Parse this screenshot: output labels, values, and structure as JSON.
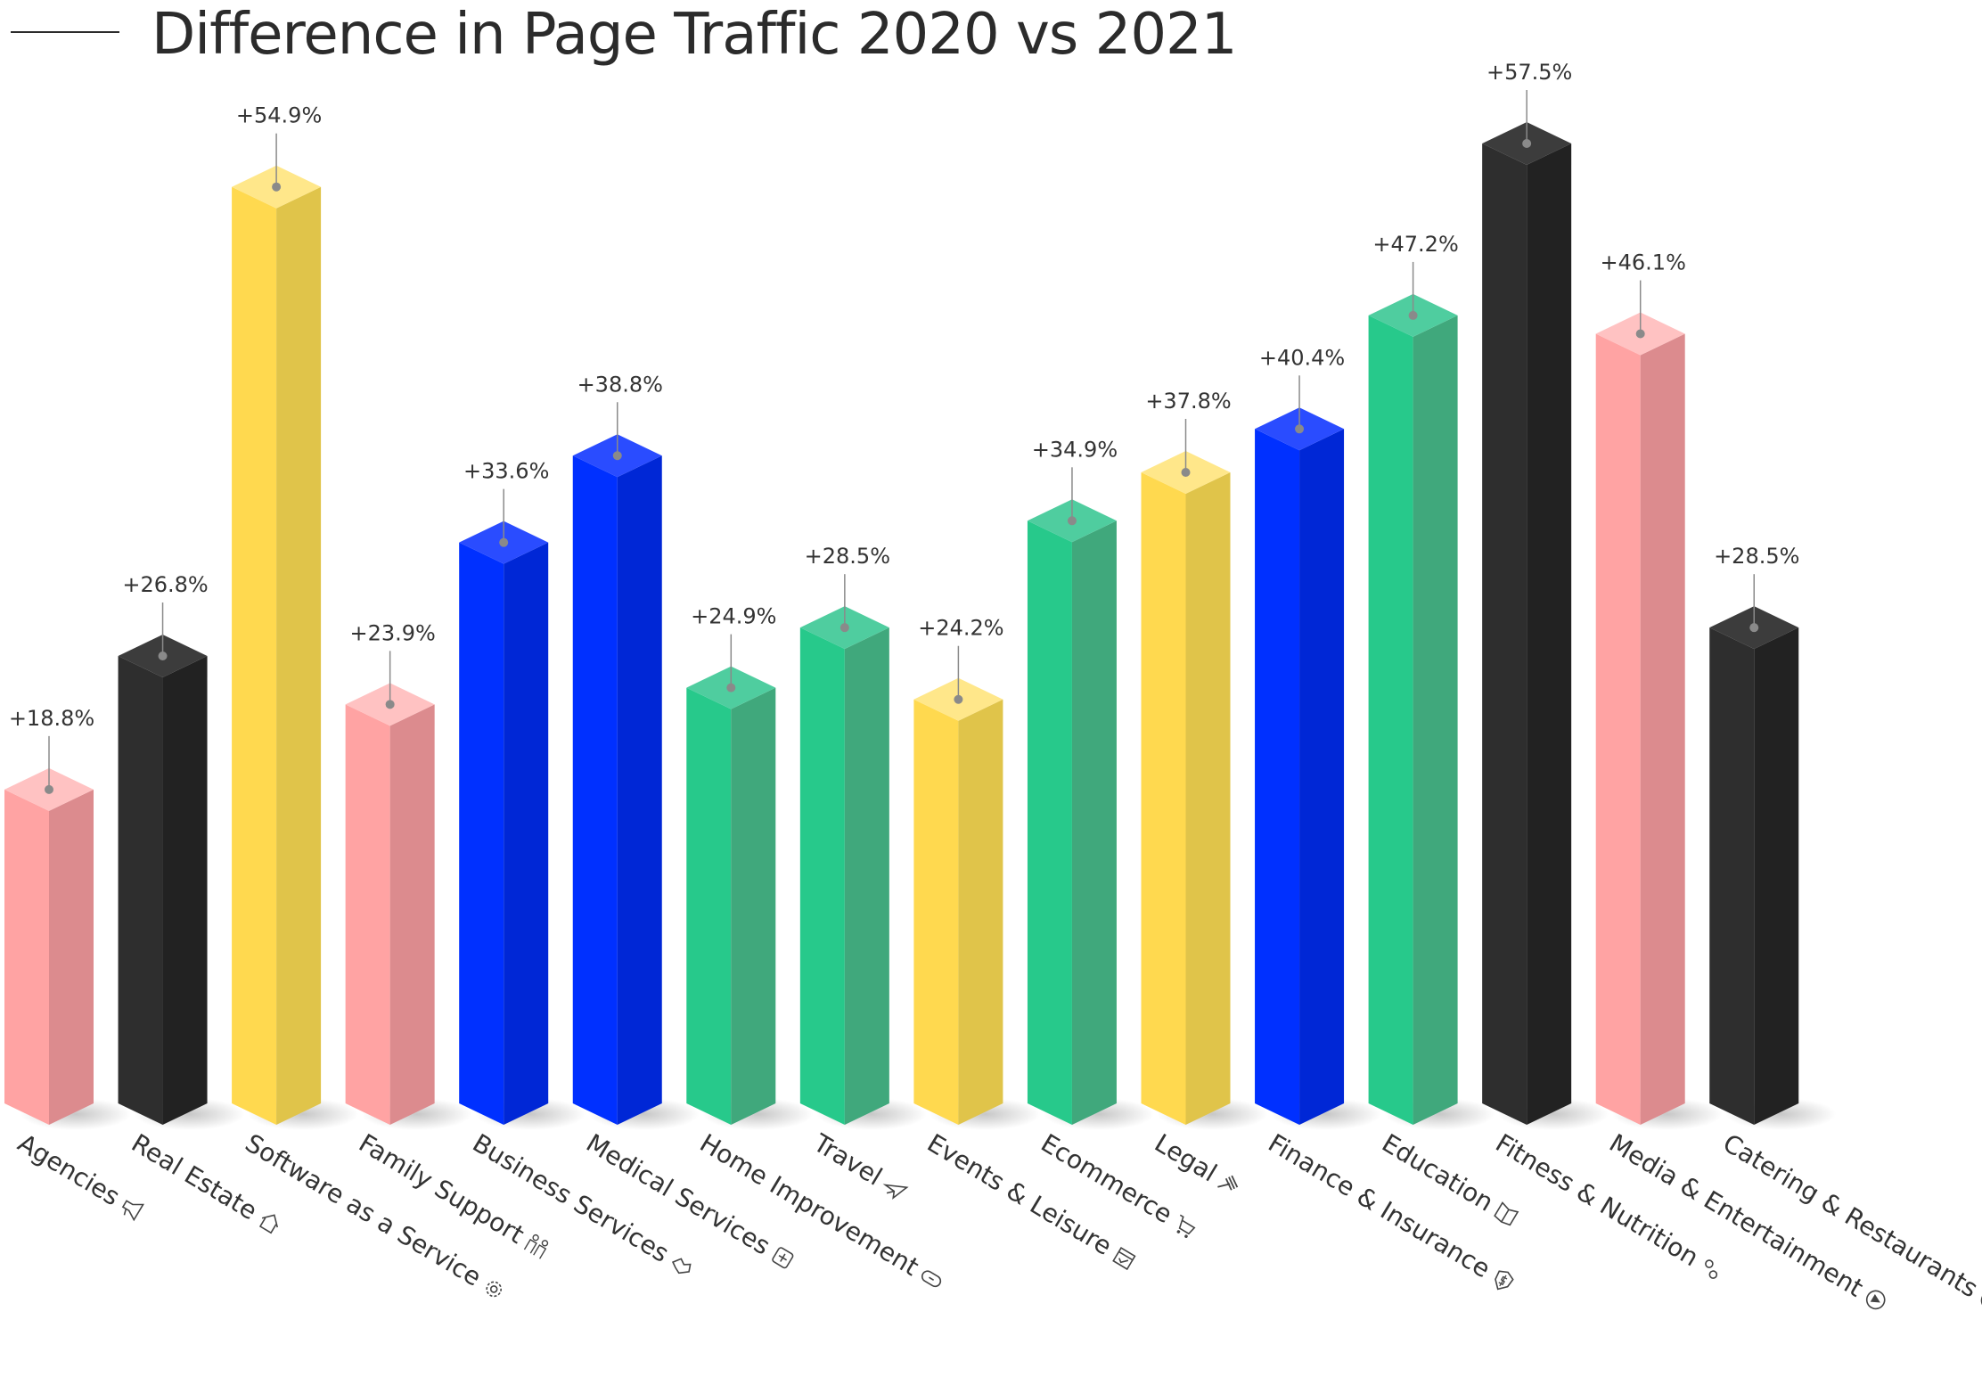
{
  "chart_data": {
    "type": "bar",
    "title": "Difference in Page Traffic 2020 vs 2021",
    "categories": [
      "Agencies",
      "Real Estate",
      "Software as a Service",
      "Family Support",
      "Business Services",
      "Medical Services",
      "Home Improvement",
      "Travel",
      "Events & Leisure",
      "Ecommerce",
      "Legal",
      "Finance & Insurance",
      "Education",
      "Fitness & Nutrition",
      "Media & Entertainment",
      "Catering & Restaurants"
    ],
    "values": [
      18.8,
      26.8,
      54.9,
      23.9,
      33.6,
      38.8,
      24.9,
      28.5,
      24.2,
      34.9,
      37.8,
      40.4,
      47.2,
      57.5,
      46.1,
      28.5
    ],
    "value_labels": [
      "+18.8%",
      "+26.8%",
      "+54.9%",
      "+23.9%",
      "+33.6%",
      "+38.8%",
      "+24.9%",
      "+28.5%",
      "+24.2%",
      "+34.9%",
      "+37.8%",
      "+40.4%",
      "+47.2%",
      "+57.5%",
      "+46.1%",
      "+28.5%"
    ],
    "colors": [
      "pink",
      "black",
      "yellow",
      "pink",
      "blue",
      "blue",
      "green",
      "green",
      "yellow",
      "green",
      "yellow",
      "blue",
      "green",
      "black",
      "pink",
      "black"
    ],
    "icons": [
      "megaphone-icon",
      "house-icon",
      "gear-icon",
      "family-icon",
      "handshake-icon",
      "medical-icon",
      "bandage-icon",
      "airplane-icon",
      "calendar-check-icon",
      "shopping-cart-icon",
      "gavel-icon",
      "shield-dollar-icon",
      "book-icon",
      "dumbbell-icon",
      "play-icon",
      "cookie-icon"
    ],
    "palette": {
      "pink": {
        "top": "#ffc2c2",
        "front": "#ffa3a3",
        "side": "#dc8b8e"
      },
      "black": {
        "top": "#3c3c3c",
        "front": "#2e2e2e",
        "side": "#222222"
      },
      "yellow": {
        "top": "#ffe78a",
        "front": "#ffd94f",
        "side": "#e0c44a"
      },
      "blue": {
        "top": "#2a4cff",
        "front": "#0030ff",
        "side": "#0027d6"
      },
      "green": {
        "top": "#4fcd9f",
        "front": "#27c98b",
        "side": "#40a87c"
      }
    },
    "grid": false,
    "legend": "none"
  }
}
